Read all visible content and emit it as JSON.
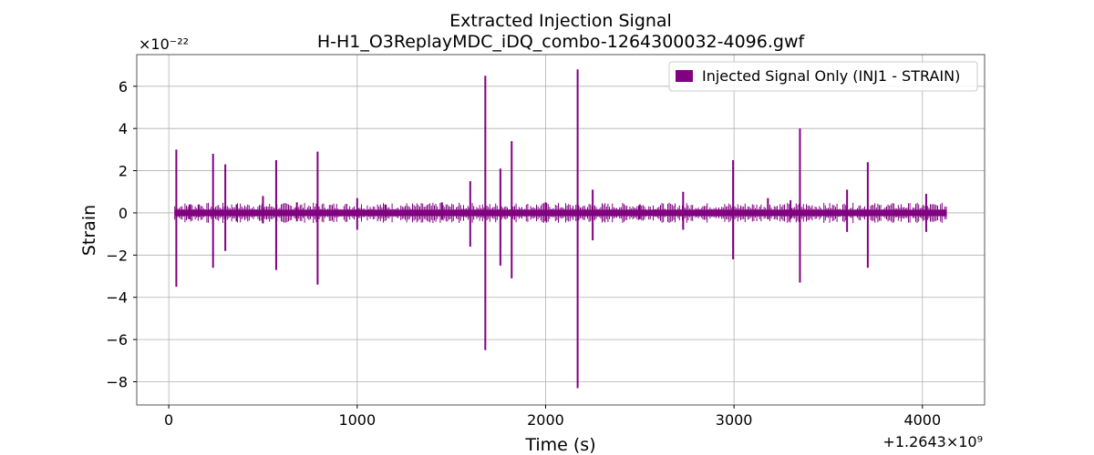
{
  "chart_data": {
    "type": "line",
    "title": "Extracted Injection Signal",
    "subtitle": "H-H1_O3ReplayMDC_iDQ_combo-1264300032-4096.gwf",
    "xlabel": "Time (s)",
    "ylabel": "Strain",
    "x_offset_label": "+1.2643×10⁹",
    "y_scale_label": "×10⁻²²",
    "xlim": [
      -170,
      4330
    ],
    "ylim": [
      -9.1,
      7.5
    ],
    "xticks": [
      0,
      1000,
      2000,
      3000,
      4000
    ],
    "xtick_labels": [
      "0",
      "1000",
      "2000",
      "3000",
      "4000"
    ],
    "yticks": [
      6,
      4,
      2,
      0,
      -2,
      -4,
      -6,
      -8
    ],
    "ytick_labels": [
      "6",
      "4",
      "2",
      "0",
      "−2",
      "−4",
      "−6",
      "−8"
    ],
    "grid": true,
    "legend_position": "top-right",
    "series": [
      {
        "name": "Injected Signal Only (INJ1 - STRAIN)",
        "color": "#800080",
        "x_range": [
          32,
          4128
        ],
        "baseline_amplitude": 0.15,
        "spikes": [
          {
            "x": 40,
            "max": 3.0,
            "min": -3.5
          },
          {
            "x": 110,
            "max": 0.4,
            "min": -0.3
          },
          {
            "x": 160,
            "max": 0.4,
            "min": -0.2
          },
          {
            "x": 235,
            "max": 2.8,
            "min": -2.6
          },
          {
            "x": 300,
            "max": 2.3,
            "min": -1.8
          },
          {
            "x": 360,
            "max": 0.4,
            "min": -0.4
          },
          {
            "x": 500,
            "max": 0.8,
            "min": -0.5
          },
          {
            "x": 570,
            "max": 2.5,
            "min": -2.7
          },
          {
            "x": 680,
            "max": 0.5,
            "min": -0.4
          },
          {
            "x": 790,
            "max": 2.9,
            "min": -3.4
          },
          {
            "x": 1000,
            "max": 0.7,
            "min": -0.8
          },
          {
            "x": 1150,
            "max": 0.4,
            "min": -0.2
          },
          {
            "x": 1450,
            "max": 0.5,
            "min": -0.3
          },
          {
            "x": 1600,
            "max": 1.5,
            "min": -1.6
          },
          {
            "x": 1680,
            "max": 6.5,
            "min": -6.5
          },
          {
            "x": 1760,
            "max": 2.1,
            "min": -2.5
          },
          {
            "x": 1820,
            "max": 3.4,
            "min": -3.1
          },
          {
            "x": 2000,
            "max": 0.5,
            "min": -0.4
          },
          {
            "x": 2170,
            "max": 6.8,
            "min": -8.3
          },
          {
            "x": 2250,
            "max": 1.1,
            "min": -1.3
          },
          {
            "x": 2500,
            "max": 0.4,
            "min": -0.3
          },
          {
            "x": 2730,
            "max": 1.0,
            "min": -0.8
          },
          {
            "x": 2995,
            "max": 2.5,
            "min": -2.2
          },
          {
            "x": 3180,
            "max": 0.7,
            "min": -0.3
          },
          {
            "x": 3300,
            "max": 0.6,
            "min": -0.3
          },
          {
            "x": 3350,
            "max": 4.0,
            "min": -3.3
          },
          {
            "x": 3600,
            "max": 1.1,
            "min": -0.9
          },
          {
            "x": 3710,
            "max": 2.4,
            "min": -2.6
          },
          {
            "x": 4020,
            "max": 0.9,
            "min": -0.9
          }
        ]
      }
    ]
  }
}
